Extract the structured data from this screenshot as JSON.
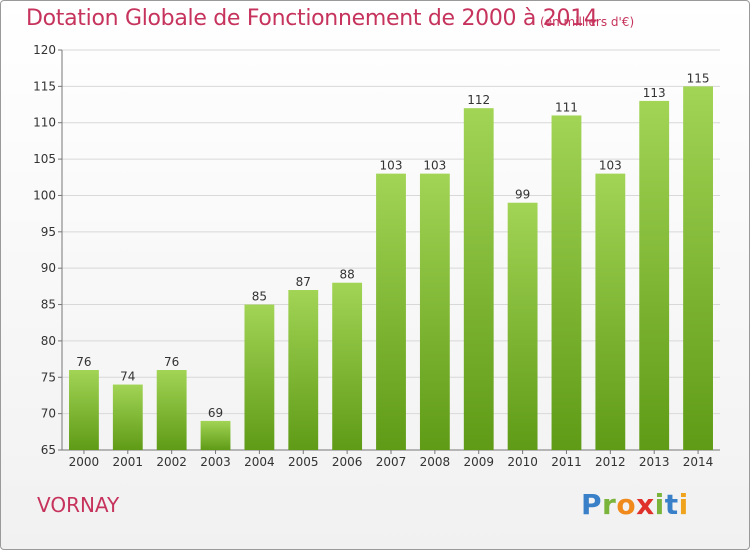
{
  "title": "Dotation Globale de Fonctionnement de 2000 à 2014",
  "unit": "(en milliers d'€)",
  "commune": "VORNAY",
  "logo": {
    "letters": [
      "P",
      "r",
      "o",
      "x",
      "i",
      "t",
      "i"
    ],
    "colors": [
      "#3a80c8",
      "#7ab43a",
      "#f08a1d",
      "#e0302a",
      "#7ab43a",
      "#3a80c8",
      "#f0a31d"
    ]
  },
  "colors": {
    "title": "#c6335c",
    "bar_light": "#a2d455",
    "bar_dark": "#5f9b16",
    "grid": "#d8d8d8"
  },
  "chart_data": {
    "type": "bar",
    "title": "Dotation Globale de Fonctionnement de 2000 à 2014",
    "subtitle": "(en milliers d'€)",
    "xlabel": "",
    "ylabel": "",
    "categories": [
      "2000",
      "2001",
      "2002",
      "2003",
      "2004",
      "2005",
      "2006",
      "2007",
      "2008",
      "2009",
      "2010",
      "2011",
      "2012",
      "2013",
      "2014"
    ],
    "values": [
      76,
      74,
      76,
      69,
      85,
      87,
      88,
      103,
      103,
      112,
      99,
      111,
      103,
      113,
      115
    ],
    "ylim": [
      65,
      120
    ],
    "yticks": [
      65,
      70,
      75,
      80,
      85,
      90,
      95,
      100,
      105,
      110,
      115,
      120
    ],
    "grid": true,
    "data_labels": true,
    "legend": "none"
  }
}
